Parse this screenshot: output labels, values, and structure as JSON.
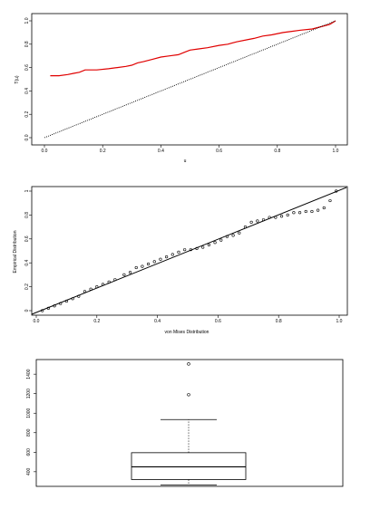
{
  "chart_data": [
    {
      "type": "line",
      "xlabel": "u",
      "ylabel": "T(u)",
      "xlim": [
        0,
        1
      ],
      "ylim": [
        0,
        1
      ],
      "x_ticks": [
        0.0,
        0.2,
        0.4,
        0.6,
        0.8,
        1.0
      ],
      "y_ticks": [
        0.0,
        0.2,
        0.4,
        0.6,
        0.8,
        1.0
      ],
      "x_tick_labels": [
        "0.0",
        "0.2",
        "0.4",
        "0.6",
        "0.8",
        "1.0"
      ],
      "y_tick_labels": [
        "0.0",
        "0.2",
        "0.4",
        "0.6",
        "0.8",
        "1.0"
      ],
      "series": [
        {
          "color": "#e00000",
          "style": "solid",
          "x": [
            0.02,
            0.05,
            0.08,
            0.1,
            0.12,
            0.14,
            0.18,
            0.22,
            0.25,
            0.28,
            0.3,
            0.32,
            0.34,
            0.37,
            0.4,
            0.43,
            0.46,
            0.48,
            0.5,
            0.53,
            0.56,
            0.6,
            0.63,
            0.66,
            0.7,
            0.72,
            0.75,
            0.78,
            0.82,
            0.85,
            0.88,
            0.92,
            0.95,
            0.98,
            1.0
          ],
          "y": [
            0.53,
            0.53,
            0.54,
            0.55,
            0.56,
            0.58,
            0.58,
            0.59,
            0.6,
            0.61,
            0.62,
            0.64,
            0.65,
            0.67,
            0.69,
            0.7,
            0.71,
            0.73,
            0.75,
            0.76,
            0.77,
            0.79,
            0.8,
            0.82,
            0.84,
            0.85,
            0.87,
            0.88,
            0.9,
            0.91,
            0.92,
            0.93,
            0.95,
            0.97,
            1.0
          ]
        },
        {
          "color": "#000000",
          "style": "dotted",
          "x": [
            0,
            1
          ],
          "y": [
            0,
            1
          ]
        }
      ]
    },
    {
      "type": "scatter",
      "xlabel": "von Mises Distribution",
      "ylabel": "Empirical Distribution",
      "xlim": [
        0,
        1
      ],
      "ylim": [
        0,
        1
      ],
      "x_ticks": [
        0.0,
        0.2,
        0.4,
        0.6,
        0.8,
        1.0
      ],
      "y_ticks": [
        0.0,
        0.2,
        0.4,
        0.6,
        0.8,
        1.0
      ],
      "x_tick_labels": [
        "0.0",
        "0.2",
        "0.4",
        "0.6",
        "0.8",
        "1.0"
      ],
      "y_tick_labels": [
        "0",
        "0.2",
        "0.4",
        "0.6",
        "0.8",
        "1"
      ],
      "points": {
        "x": [
          0.02,
          0.04,
          0.06,
          0.08,
          0.1,
          0.12,
          0.14,
          0.16,
          0.18,
          0.2,
          0.22,
          0.24,
          0.26,
          0.29,
          0.31,
          0.33,
          0.35,
          0.37,
          0.39,
          0.41,
          0.43,
          0.45,
          0.47,
          0.49,
          0.51,
          0.53,
          0.55,
          0.57,
          0.59,
          0.61,
          0.63,
          0.65,
          0.67,
          0.69,
          0.71,
          0.73,
          0.75,
          0.77,
          0.79,
          0.81,
          0.83,
          0.85,
          0.87,
          0.89,
          0.91,
          0.93,
          0.95,
          0.97,
          0.99
        ],
        "y": [
          0.0,
          0.02,
          0.04,
          0.06,
          0.08,
          0.1,
          0.12,
          0.16,
          0.18,
          0.2,
          0.22,
          0.24,
          0.26,
          0.3,
          0.32,
          0.36,
          0.37,
          0.39,
          0.41,
          0.43,
          0.45,
          0.47,
          0.49,
          0.51,
          0.51,
          0.52,
          0.53,
          0.55,
          0.57,
          0.59,
          0.62,
          0.63,
          0.65,
          0.7,
          0.74,
          0.75,
          0.76,
          0.78,
          0.78,
          0.79,
          0.8,
          0.82,
          0.82,
          0.83,
          0.83,
          0.84,
          0.86,
          0.92,
          1.0
        ]
      },
      "reference_line": {
        "x": [
          0,
          1
        ],
        "y": [
          0,
          1
        ]
      }
    },
    {
      "type": "box",
      "y_ticks": [
        400,
        600,
        800,
        1000,
        1200,
        1400
      ],
      "y_tick_labels": [
        "400",
        "600",
        "800",
        "1000",
        "1200",
        "1400"
      ],
      "ylim": [
        250,
        1550
      ],
      "box": {
        "whisker_low": 265,
        "q1": 320,
        "median": 450,
        "q3": 595,
        "whisker_high": 935,
        "outliers": [
          1190,
          1505
        ]
      }
    }
  ]
}
